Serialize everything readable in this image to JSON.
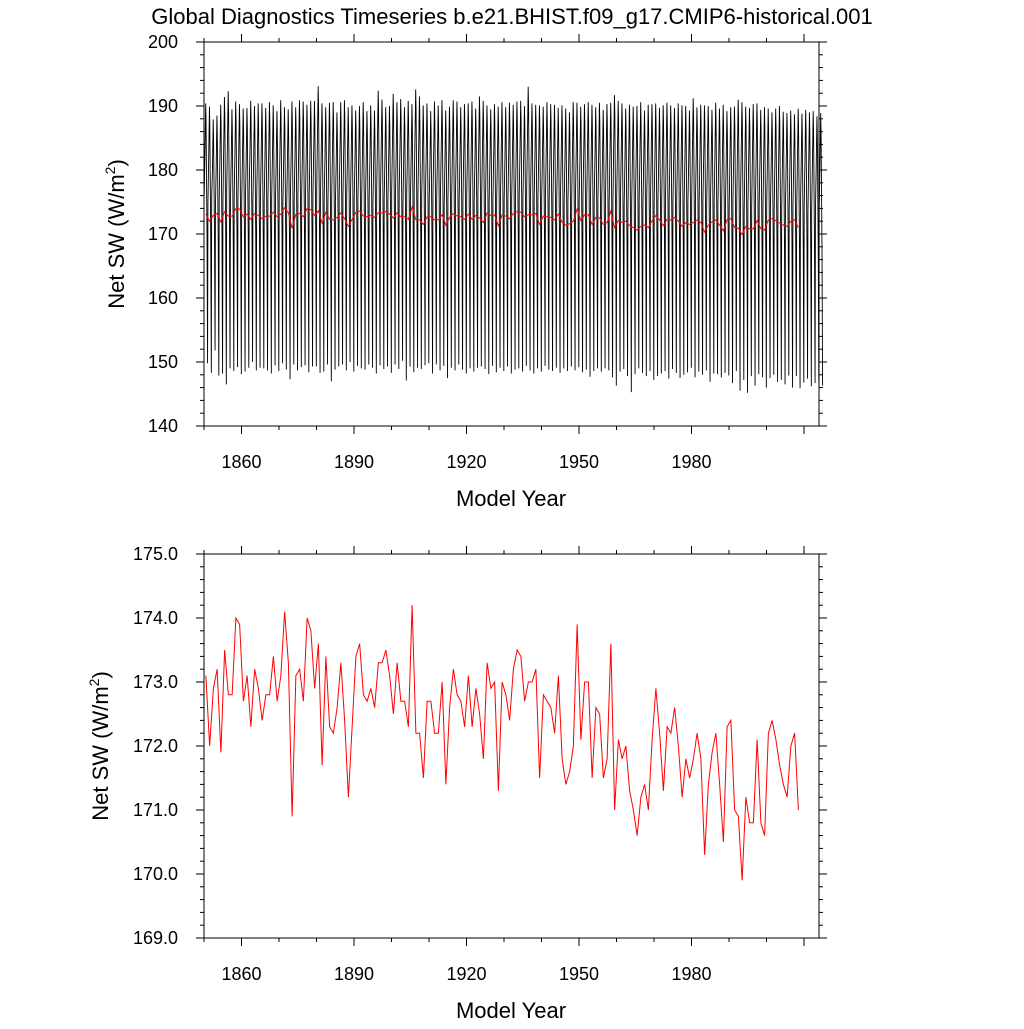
{
  "title": "Global Diagnostics Timeseries b.e21.BHIST.f09_g17.CMIP6-historical.001",
  "chart_data": [
    {
      "type": "line",
      "xlabel": "Model Year",
      "ylabel_main": "Net SW (W/m",
      "ylabel_sup": "2",
      "ylabel_close": ")",
      "xlim": [
        1850,
        2014
      ],
      "ylim": [
        140,
        200
      ],
      "xticks": [
        1860,
        1890,
        1920,
        1950,
        1980
      ],
      "yticks": [
        140,
        150,
        160,
        170,
        180,
        190,
        200
      ],
      "grid": false,
      "series": [
        {
          "color": "#000000",
          "kind": "monthly seasonal cycle",
          "annual_max": [
            190.4,
            189.9,
            187.9,
            188.5,
            190.2,
            191.4,
            192.3,
            189.5,
            190.7,
            190.3,
            189.6,
            189.7,
            190.8,
            190.0,
            190.4,
            190.4,
            189.7,
            190.6,
            190.1,
            189.2,
            190.9,
            189.8,
            189.5,
            190.7,
            189.8,
            190.9,
            190.7,
            190.2,
            190.8,
            190.8,
            193.1,
            190.4,
            189.8,
            190.5,
            190.6,
            189.0,
            190.6,
            190.9,
            189.8,
            190.1,
            189.3,
            190.0,
            190.6,
            189.2,
            190.1,
            189.3,
            192.4,
            191.0,
            189.8,
            190.0,
            191.9,
            190.6,
            191.1,
            189.8,
            190.8,
            190.3,
            192.6,
            191.5,
            190.1,
            190.4,
            189.2,
            190.7,
            190.1,
            190.9,
            189.3,
            189.9,
            190.9,
            190.7,
            189.8,
            190.3,
            190.4,
            190.7,
            189.6,
            191.5,
            190.8,
            190.1,
            189.5,
            190.3,
            189.9,
            190.6,
            189.8,
            190.5,
            190.2,
            190.7,
            190.8,
            190.0,
            193.0,
            190.4,
            190.2,
            190.1,
            189.9,
            190.6,
            190.3,
            190.2,
            189.7,
            190.1,
            189.6,
            189.0,
            190.6,
            190.5,
            189.9,
            190.3,
            190.6,
            190.2,
            189.8,
            190.5,
            189.4,
            190.3,
            190.5,
            191.7,
            190.8,
            190.4,
            189.6,
            190.2,
            189.9,
            190.0,
            190.6,
            189.3,
            190.2,
            190.3,
            190.4,
            189.7,
            190.1,
            190.5,
            190.1,
            189.7,
            190.4,
            190.1,
            190.0,
            189.3,
            191.2,
            189.8,
            190.2,
            190.1,
            190.0,
            189.4,
            190.5,
            189.6,
            190.2,
            189.2,
            189.8,
            189.9,
            191.0,
            190.6,
            189.9,
            189.7,
            190.3,
            190.4,
            189.4,
            189.8,
            189.6,
            189.0,
            189.6,
            190.0,
            189.1,
            188.9,
            189.3,
            188.7,
            189.6,
            188.8,
            189.4,
            189.0,
            189.2,
            188.4,
            188.9
          ],
          "annual_min": [
            149.8,
            148.3,
            151.8,
            147.9,
            148.2,
            146.5,
            149.0,
            148.6,
            149.2,
            148.1,
            148.5,
            149.1,
            150.0,
            148.7,
            149.1,
            149.0,
            148.7,
            148.2,
            149.5,
            148.6,
            149.8,
            148.8,
            147.3,
            149.6,
            148.7,
            149.2,
            149.5,
            148.4,
            149.3,
            149.3,
            148.3,
            148.5,
            149.6,
            147.0,
            148.8,
            149.3,
            149.6,
            148.7,
            150.0,
            148.5,
            149.4,
            149.0,
            148.8,
            149.6,
            149.1,
            148.2,
            149.5,
            148.9,
            149.3,
            148.3,
            149.6,
            148.9,
            150.2,
            147.1,
            149.3,
            148.4,
            149.1,
            148.9,
            149.5,
            149.8,
            148.2,
            149.6,
            148.7,
            149.4,
            147.5,
            149.1,
            148.7,
            149.6,
            148.8,
            148.2,
            149.0,
            148.5,
            149.1,
            149.3,
            148.9,
            148.1,
            149.4,
            148.4,
            149.1,
            148.6,
            149.3,
            148.2,
            148.8,
            149.0,
            148.5,
            149.4,
            148.7,
            148.2,
            149.0,
            148.5,
            149.4,
            148.8,
            148.6,
            149.1,
            148.3,
            149.0,
            148.6,
            149.3,
            148.7,
            149.2,
            148.4,
            148.8,
            147.7,
            148.6,
            149.0,
            148.5,
            149.0,
            148.7,
            147.6,
            146.3,
            148.5,
            148.9,
            147.8,
            145.3,
            148.1,
            149.0,
            148.3,
            147.8,
            148.6,
            147.2,
            147.8,
            148.2,
            148.6,
            147.4,
            148.9,
            148.3,
            147.5,
            148.0,
            148.4,
            149.1,
            147.6,
            148.5,
            148.0,
            148.7,
            146.9,
            148.2,
            148.1,
            147.6,
            148.3,
            147.9,
            146.7,
            148.6,
            145.5,
            147.2,
            145.2,
            147.8,
            146.3,
            148.1,
            147.6,
            146.0,
            147.5,
            148.0,
            146.9,
            147.2,
            146.5,
            147.9,
            146.0,
            147.8,
            145.9,
            146.8,
            147.4,
            146.2,
            146.7,
            147.1,
            146.3
          ]
        },
        {
          "color": "#ff0000",
          "kind": "annual mean",
          "values_ref": "annual_mean"
        }
      ]
    },
    {
      "type": "line",
      "xlabel": "Model Year",
      "ylabel_main": "Net SW (W/m",
      "ylabel_sup": "2",
      "ylabel_close": ")",
      "xlim": [
        1850,
        2014
      ],
      "ylim": [
        169.0,
        175.0
      ],
      "xticks": [
        1860,
        1890,
        1920,
        1950,
        1980
      ],
      "yticks": [
        "169.0",
        "170.0",
        "171.0",
        "172.0",
        "173.0",
        "174.0",
        "175.0"
      ],
      "grid": false,
      "series": [
        {
          "color": "#ff0000",
          "kind": "annual mean",
          "values_ref": "annual_mean"
        }
      ]
    }
  ],
  "annual_mean": [
    173.1,
    172.0,
    172.9,
    173.2,
    171.9,
    173.5,
    172.8,
    172.8,
    174.0,
    173.9,
    172.7,
    173.1,
    172.3,
    173.2,
    172.9,
    172.4,
    172.8,
    172.8,
    173.4,
    172.7,
    173.1,
    174.1,
    173.3,
    170.9,
    173.1,
    173.2,
    172.7,
    174.0,
    173.8,
    172.9,
    173.6,
    171.7,
    173.4,
    172.3,
    172.2,
    172.6,
    173.3,
    172.4,
    171.2,
    172.3,
    173.4,
    173.6,
    172.8,
    172.7,
    172.9,
    172.6,
    173.3,
    173.3,
    173.5,
    173.1,
    172.5,
    173.3,
    172.7,
    172.7,
    172.3,
    174.2,
    172.2,
    172.2,
    171.5,
    172.7,
    172.7,
    172.2,
    172.2,
    173.0,
    171.4,
    172.6,
    173.2,
    172.8,
    172.7,
    172.3,
    173.1,
    172.3,
    172.9,
    172.5,
    171.8,
    173.3,
    172.9,
    173.0,
    171.3,
    173.0,
    172.8,
    172.4,
    173.2,
    173.5,
    173.4,
    172.7,
    173.0,
    173.0,
    173.2,
    171.5,
    172.8,
    172.7,
    172.6,
    172.2,
    173.1,
    171.8,
    171.4,
    171.6,
    172.0,
    173.9,
    172.1,
    173.0,
    173.0,
    171.5,
    172.6,
    172.5,
    171.5,
    171.8,
    173.6,
    171.0,
    172.1,
    171.8,
    172.0,
    171.3,
    171.0,
    170.6,
    171.2,
    171.4,
    171.0,
    172.1,
    172.9,
    172.2,
    171.3,
    172.3,
    172.2,
    172.6,
    172.0,
    171.2,
    171.8,
    171.5,
    171.8,
    172.2,
    171.8,
    170.3,
    171.4,
    171.9,
    172.2,
    171.4,
    170.5,
    172.3,
    172.4,
    171.0,
    170.9,
    169.9,
    171.2,
    170.8,
    170.8,
    172.1,
    170.8,
    170.6,
    172.2,
    172.4,
    172.1,
    171.7,
    171.4,
    171.2,
    172.0,
    172.2,
    171.0
  ]
}
